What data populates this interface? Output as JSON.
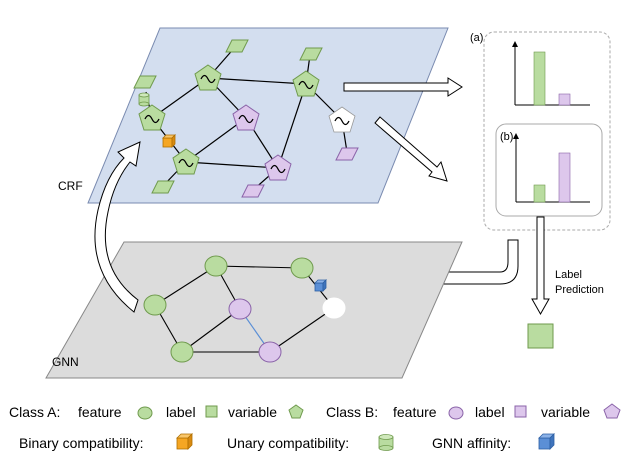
{
  "labels": {
    "crf": "CRF",
    "gnn": "GNN",
    "panel_a": "(a)",
    "panel_b": "(b)",
    "label_prediction_line1": "Label",
    "label_prediction_line2": "Prediction"
  },
  "legend": {
    "class_a": "Class A:",
    "class_b": "Class B:",
    "feature": "feature",
    "label": "label",
    "variable": "variable",
    "binary": "Binary compatibility:",
    "unary": "Unary compatibility:",
    "gnn_affinity": "GNN affinity:"
  },
  "colors": {
    "crf_plane": "#d3deef",
    "gnn_plane": "#dcdcdc",
    "class_a": "#b9dca0",
    "class_a_stroke": "#6f9a4d",
    "class_b": "#ddc7ec",
    "class_b_stroke": "#8a63a8",
    "binary": "#f5a623",
    "unary": "#b9dca0",
    "gnn_affinity": "#5b8fd6"
  },
  "icons": {
    "sine": "sine-wave-glyph",
    "arrow": "block-arrow"
  }
}
